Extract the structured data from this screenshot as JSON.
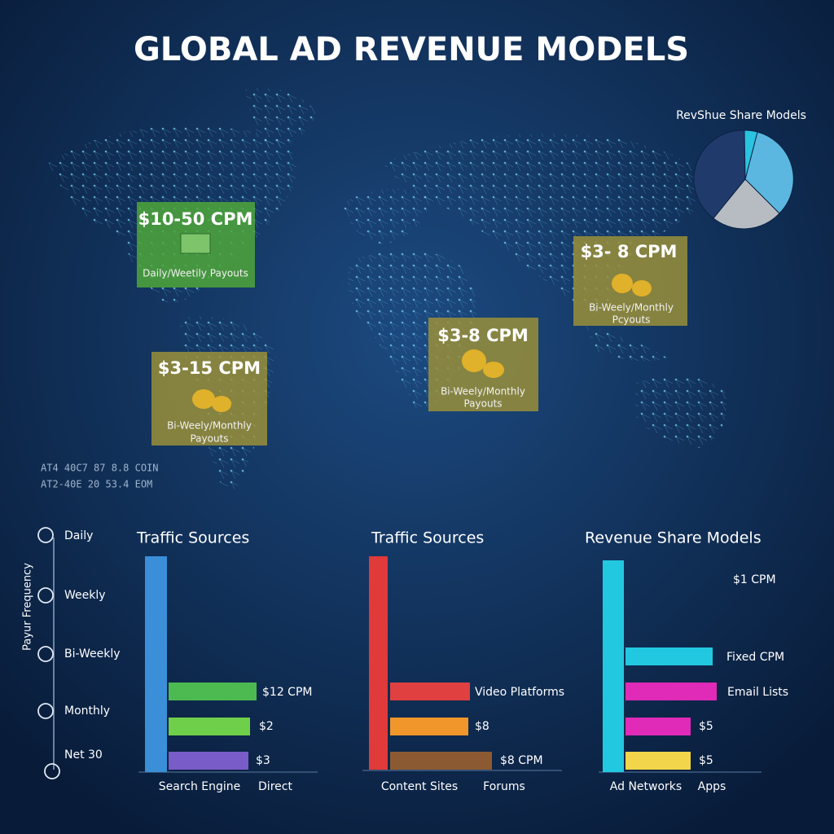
{
  "header": {
    "title": "GLOBAL AD REVENUE MODELS"
  },
  "pie": {
    "title": "RevShue Share Models"
  },
  "callouts": [
    {
      "price": "$10-50 CPM",
      "payout": [
        "Daily/Weetily Payouts"
      ]
    },
    {
      "price": "$3-15 CPM",
      "payout": [
        "Bi-Weely/Monthly",
        "Payouts"
      ]
    },
    {
      "price": "$3-8 CPM",
      "payout": [
        "Bi-Weely/Monthly",
        "Payouts"
      ]
    },
    {
      "price": "$3- 8 CPM",
      "payout": [
        "Bi-Weely/Monthly",
        "Pcyouts"
      ]
    }
  ],
  "code_lines": [
    "AT4 40C7 87 8.8 COIN",
    "AT2-40E 20 53.4 EOM"
  ],
  "payout_axis": {
    "label": "Payur Frequency",
    "ticks": [
      "Daily",
      "Weekly",
      "Bi-Weekly",
      "Monthly",
      "Net 30"
    ]
  },
  "panels": [
    {
      "title": "Traffic Sources",
      "bar_labels": [
        "$12 CPM",
        "$2",
        "$3"
      ],
      "x_labels": [
        "Search Engine",
        "Direct"
      ]
    },
    {
      "title": "Traffic Sources",
      "bar_labels": [
        "Video Platforms",
        "$8",
        "$8 CPM"
      ],
      "x_labels": [
        "Content Sites",
        "Forums"
      ]
    },
    {
      "title": "Revenue Share Models",
      "top_label": "$1 CPM",
      "bar_labels": [
        "Fixed CPM",
        "Email Lists",
        "$5",
        "$5"
      ],
      "x_labels": [
        "Ad Networks",
        "Apps"
      ]
    }
  ]
}
